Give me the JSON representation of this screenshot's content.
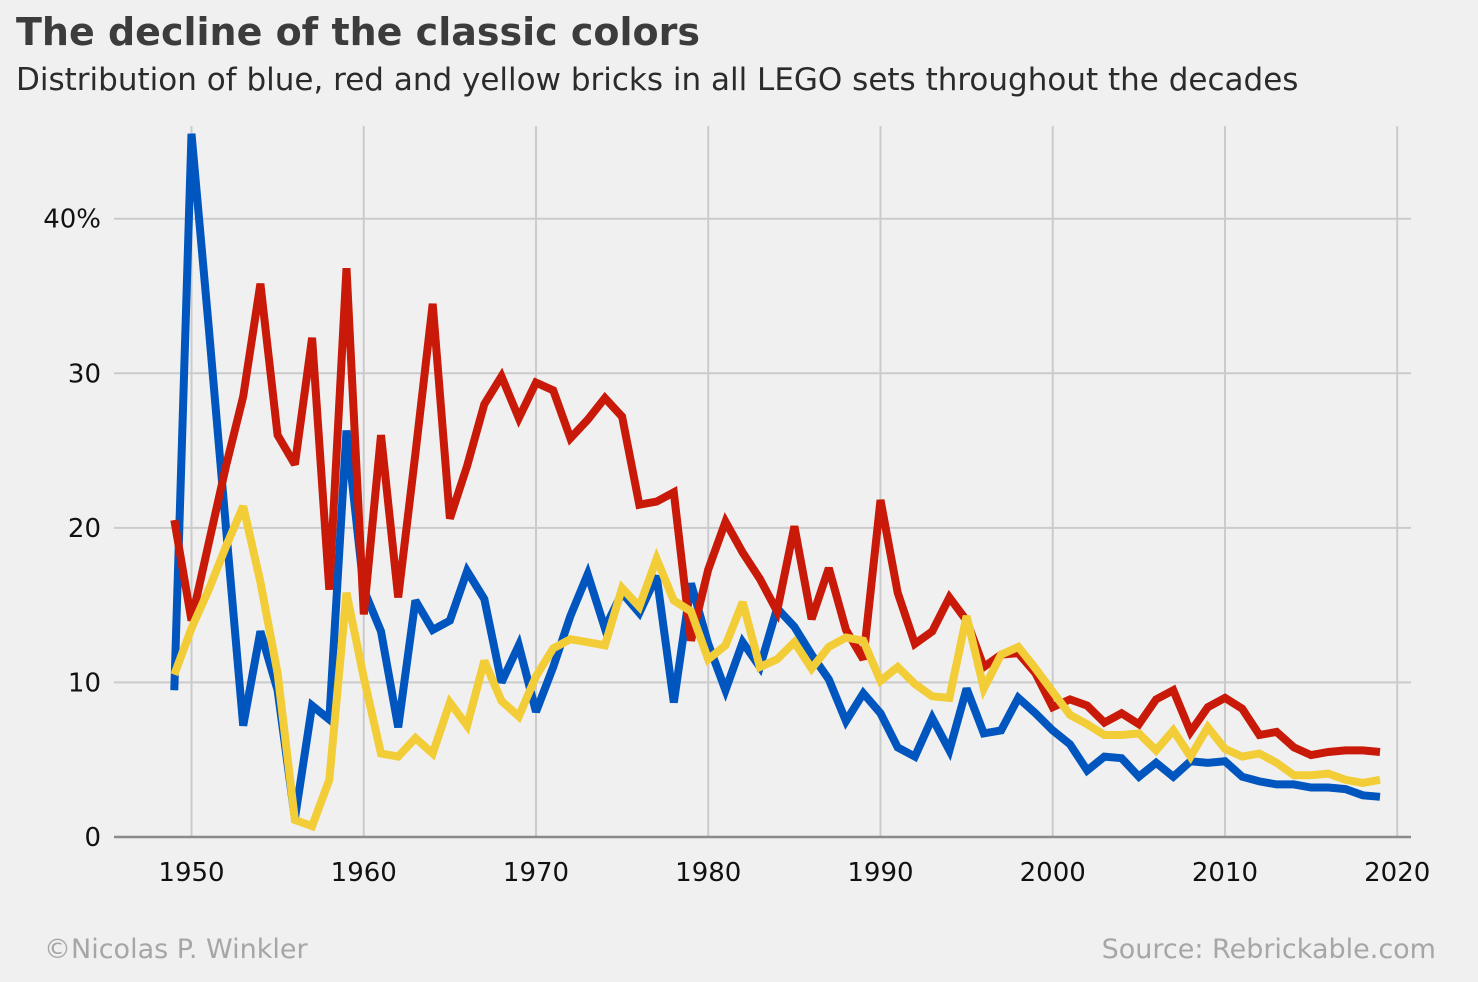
{
  "title": "The decline of the classic colors",
  "subtitle": "Distribution of blue, red and yellow bricks in all LEGO sets throughout the decades",
  "footer": {
    "credit": "©Nicolas P. Winkler",
    "source": "Source: Rebrickable.com"
  },
  "chart_data": {
    "type": "line",
    "title": "The decline of the classic colors",
    "subtitle": "Distribution of blue, red and yellow bricks in all LEGO sets throughout the decades",
    "xlim": [
      1945.5,
      2020.8
    ],
    "ylim": [
      0,
      46
    ],
    "x_ticks": [
      1950,
      1960,
      1970,
      1980,
      1990,
      2000,
      2010,
      2020
    ],
    "y_ticks": [
      0,
      10,
      20,
      30,
      40
    ],
    "y_tick_labels": [
      "0",
      "10",
      "20",
      "30",
      "40%"
    ],
    "grid": true,
    "legend": "none",
    "x": [
      1949,
      1950,
      1951,
      1952,
      1953,
      1954,
      1955,
      1956,
      1957,
      1958,
      1959,
      1960,
      1961,
      1962,
      1963,
      1964,
      1965,
      1966,
      1967,
      1968,
      1969,
      1970,
      1971,
      1972,
      1973,
      1974,
      1975,
      1976,
      1977,
      1978,
      1979,
      1980,
      1981,
      1982,
      1983,
      1984,
      1985,
      1986,
      1987,
      1988,
      1989,
      1990,
      1991,
      1992,
      1993,
      1994,
      1995,
      1996,
      1997,
      1998,
      1999,
      2000,
      2001,
      2002,
      2003,
      2004,
      2005,
      2006,
      2007,
      2008,
      2009,
      2010,
      2011,
      2012,
      2013,
      2014,
      2015,
      2016,
      2017,
      2018,
      2019
    ],
    "series": [
      {
        "color": "#0055bf",
        "values": [
          9.5,
          45.5,
          33,
          20,
          7.2,
          13.3,
          9.5,
          1.2,
          8.5,
          7.6,
          26.3,
          16,
          13.3,
          7.1,
          15.3,
          13.4,
          14,
          17.2,
          15.4,
          10,
          12.4,
          8.1,
          11,
          14.3,
          17,
          13.5,
          15.8,
          14.5,
          16.9,
          8.7,
          16.4,
          12.5,
          9.5,
          12.6,
          11,
          14.8,
          13.6,
          11.8,
          10.2,
          7.5,
          9.3,
          8,
          5.8,
          5.2,
          7.7,
          5.6,
          9.6,
          6.7,
          6.9,
          9,
          8,
          6.9,
          6,
          4.3,
          5.2,
          5.1,
          3.9,
          4.8,
          3.9,
          4.9,
          4.8,
          4.9,
          3.9,
          3.6,
          3.4,
          3.4,
          3.2,
          3.2,
          3.1,
          2.7,
          2.6
        ]
      },
      {
        "color": "#c91a09",
        "values": [
          20.5,
          14,
          19,
          24,
          28.5,
          35.8,
          26,
          24.1,
          32.3,
          16,
          36.8,
          14.4,
          26,
          15.5,
          24.8,
          34.5,
          20.6,
          24,
          28,
          29.8,
          27.1,
          29.4,
          28.9,
          25.8,
          27,
          28.4,
          27.2,
          21.5,
          21.7,
          22.3,
          12.7,
          17.3,
          20.4,
          18.4,
          16.7,
          14.6,
          20.1,
          14.1,
          17.4,
          13.4,
          11.5,
          21.8,
          15.8,
          12.5,
          13.3,
          15.5,
          14,
          11,
          11.8,
          11.9,
          10.6,
          8.4,
          8.9,
          8.5,
          7.4,
          8,
          7.3,
          8.9,
          9.5,
          6.8,
          8.4,
          9,
          8.3,
          6.6,
          6.8,
          5.8,
          5.3,
          5.5,
          5.6,
          5.6,
          5.5
        ]
      },
      {
        "color": "#f2cd37",
        "values": [
          10.5,
          13.5,
          16,
          18.8,
          21.4,
          16.5,
          10.6,
          1.1,
          0.7,
          3.7,
          15.8,
          10.3,
          5.4,
          5.2,
          6.4,
          5.4,
          8.7,
          7.2,
          11.4,
          8.8,
          7.8,
          10.4,
          12.2,
          12.8,
          12.6,
          12.4,
          16.1,
          14.9,
          18,
          15.3,
          14.6,
          11.5,
          12.4,
          15.2,
          11,
          11.5,
          12.6,
          10.9,
          12.3,
          12.9,
          12.7,
          10.1,
          11,
          9.9,
          9.1,
          9,
          14.3,
          9.6,
          11.8,
          12.3,
          10.9,
          9.4,
          7.9,
          7.3,
          6.6,
          6.6,
          6.7,
          5.6,
          6.9,
          5.2,
          7.1,
          5.7,
          5.2,
          5.4,
          4.8,
          4,
          4,
          4.1,
          3.7,
          3.5,
          3.7
        ]
      }
    ]
  }
}
